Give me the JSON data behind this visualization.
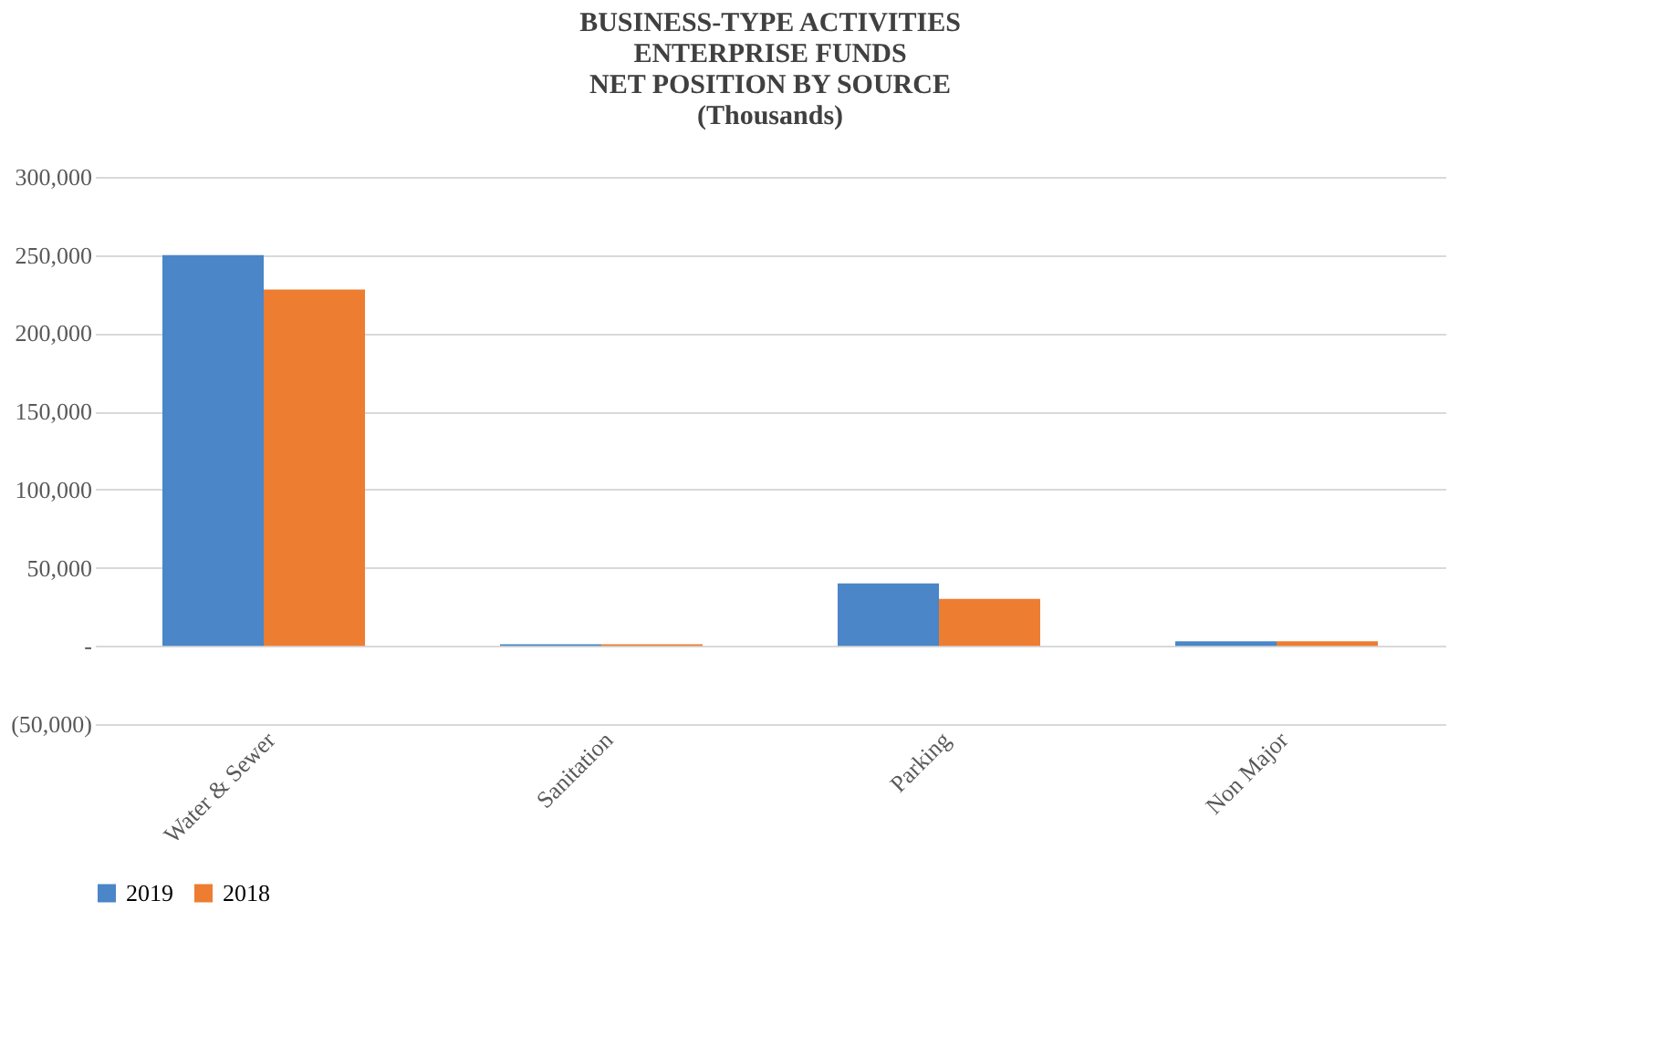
{
  "chart_data": {
    "type": "bar",
    "title": [
      "BUSINESS-TYPE ACTIVITIES",
      "ENTERPRISE FUNDS",
      "NET POSITION BY SOURCE",
      "(Thousands)"
    ],
    "categories": [
      "Water & Sewer",
      "Sanitation",
      "Parking",
      "Non Major"
    ],
    "series": [
      {
        "name": "2019",
        "color": "#4a86c8",
        "values": [
          250000,
          1000,
          40000,
          3000
        ]
      },
      {
        "name": "2018",
        "color": "#ed7d31",
        "values": [
          228000,
          1000,
          30000,
          3000
        ]
      }
    ],
    "ylim": [
      -50000,
      300000
    ],
    "yticks": [
      {
        "value": -50000,
        "label": "(50,000)"
      },
      {
        "value": 0,
        "label": "-"
      },
      {
        "value": 50000,
        "label": "50,000"
      },
      {
        "value": 100000,
        "label": "100,000"
      },
      {
        "value": 150000,
        "label": "150,000"
      },
      {
        "value": 200000,
        "label": "200,000"
      },
      {
        "value": 250000,
        "label": "250,000"
      },
      {
        "value": 300000,
        "label": "300,000"
      }
    ],
    "grid": "y",
    "legend": "bottom"
  }
}
